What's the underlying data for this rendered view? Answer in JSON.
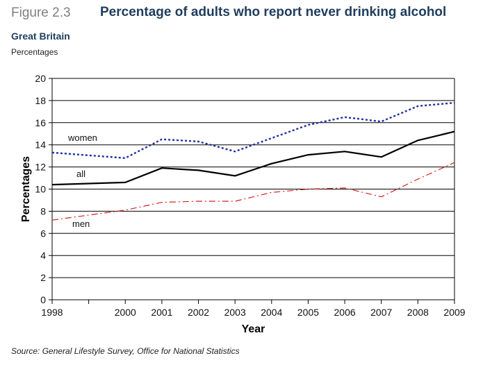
{
  "header": {
    "figure_label": "Figure 2.3",
    "title": "Percentage of adults who report never drinking alcohol",
    "region": "Great Britain",
    "units": "Percentages"
  },
  "footer": {
    "source": "Source: General Lifestyle Survey, Office for National Statistics"
  },
  "chart_data": {
    "type": "line",
    "title": "Percentage of adults who report never drinking alcohol",
    "subtitle": "Great Britain",
    "xlabel": "Year",
    "ylabel": "Percentages",
    "ylim": [
      0,
      20
    ],
    "yticks": [
      0,
      2,
      4,
      6,
      8,
      10,
      12,
      14,
      16,
      18,
      20
    ],
    "x": [
      1998,
      2000,
      2001,
      2002,
      2003,
      2004,
      2005,
      2006,
      2007,
      2008,
      2009
    ],
    "xtick_labels": [
      "1998",
      "2000",
      "2001",
      "2002",
      "2003",
      "2004",
      "2005",
      "2006",
      "2007",
      "2008",
      "2009"
    ],
    "grid": true,
    "series": [
      {
        "name": "women",
        "color": "#1f2f9f",
        "style": "dotted",
        "values": [
          13.3,
          12.8,
          14.5,
          14.3,
          13.4,
          14.6,
          15.8,
          16.5,
          16.1,
          17.5,
          17.8
        ]
      },
      {
        "name": "all",
        "color": "#000000",
        "style": "solid",
        "values": [
          10.4,
          10.6,
          11.9,
          11.7,
          11.2,
          12.3,
          13.1,
          13.4,
          12.9,
          14.4,
          15.2
        ]
      },
      {
        "name": "men",
        "color": "#d42020",
        "style": "dashdot",
        "values": [
          7.2,
          8.1,
          8.8,
          8.9,
          8.9,
          9.7,
          10.0,
          10.1,
          9.3,
          10.9,
          12.4
        ]
      }
    ]
  }
}
